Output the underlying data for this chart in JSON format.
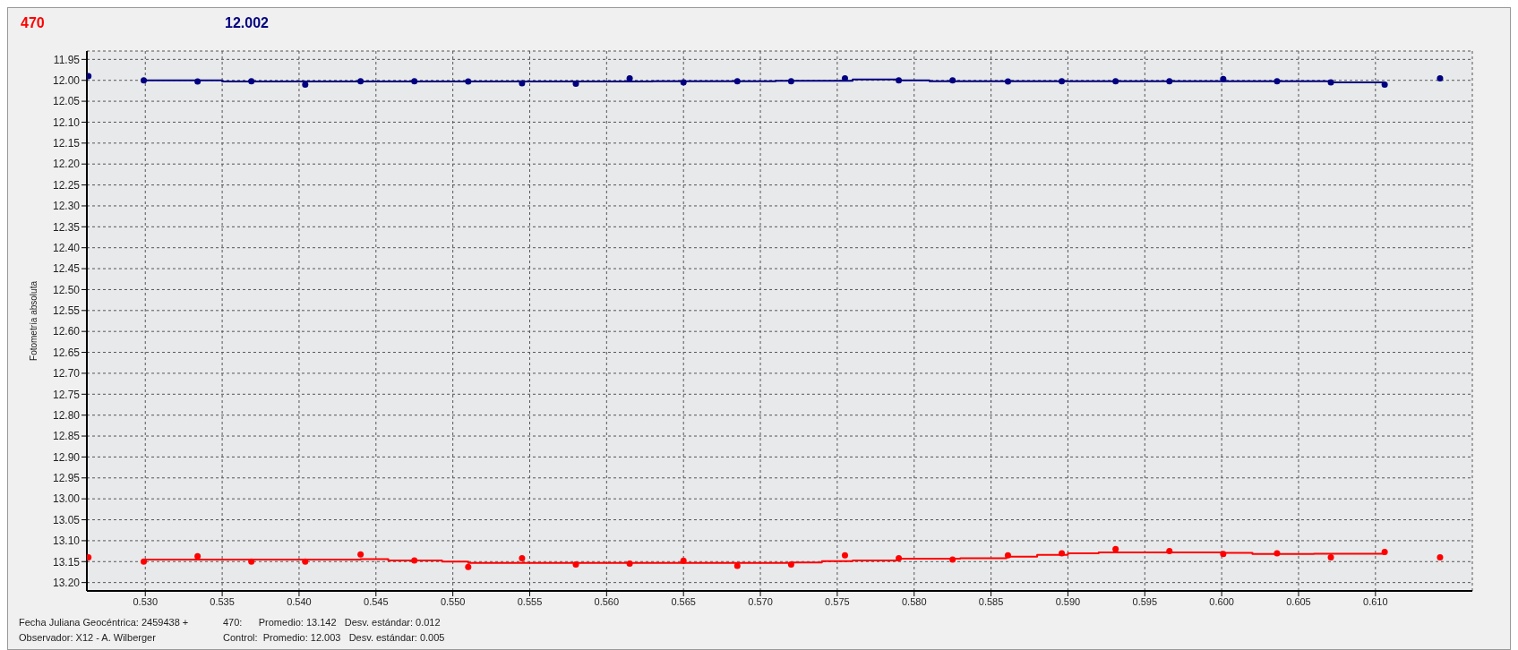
{
  "chart_data": {
    "type": "scatter",
    "ylabel": "Fotometría absoluta",
    "annotations": [
      "Fecha Juliana Geocéntrica: 2459438 +",
      "Observador: X12 - A. Wilberger",
      "470:      Promedio: 13.142   Desv. estándar: 0.012",
      "Control:  Promedio: 12.003   Desv. estándar: 0.005"
    ],
    "x": [
      0.5263,
      0.5299,
      0.5334,
      0.5369,
      0.5404,
      0.544,
      0.5475,
      0.551,
      0.5545,
      0.558,
      0.5615,
      0.565,
      0.5685,
      0.572,
      0.5755,
      0.579,
      0.5825,
      0.5861,
      0.5896,
      0.5931,
      0.5966,
      0.6001,
      0.6036,
      0.6071,
      0.6106,
      0.6142
    ],
    "series": [
      {
        "name": "470",
        "color": "#ff0000",
        "values": [
          13.14,
          13.15,
          13.137,
          13.15,
          13.15,
          13.133,
          13.147,
          13.163,
          13.142,
          13.157,
          13.155,
          13.148,
          13.16,
          13.157,
          13.135,
          13.142,
          13.145,
          13.135,
          13.13,
          13.12,
          13.125,
          13.132,
          13.13,
          13.14,
          13.127,
          13.14
        ]
      },
      {
        "name": "12.002",
        "color": "#000080",
        "values": [
          11.99,
          12.0,
          12.003,
          12.002,
          12.01,
          12.002,
          12.002,
          12.003,
          12.007,
          12.008,
          11.995,
          12.005,
          12.002,
          12.002,
          11.995,
          12.0,
          12.0,
          12.003,
          12.002,
          12.002,
          12.002,
          11.997,
          12.002,
          12.005,
          12.01,
          11.995
        ]
      },
      {
        "type": "step",
        "color": "#ff0000",
        "marker": "none",
        "x": [
          0.5299,
          0.544,
          0.5458,
          0.5493,
          0.551,
          0.572,
          0.574,
          0.576,
          0.579,
          0.583,
          0.586,
          0.588,
          0.59,
          0.592,
          0.6,
          0.602,
          0.606,
          0.6106
        ],
        "values": [
          13.145,
          13.144,
          13.147,
          13.15,
          13.153,
          13.152,
          13.149,
          13.147,
          13.143,
          13.142,
          13.138,
          13.134,
          13.13,
          13.128,
          13.129,
          13.132,
          13.131,
          13.133
        ]
      },
      {
        "type": "step",
        "color": "#000080",
        "marker": "none",
        "x": [
          0.5299,
          0.535,
          0.542,
          0.558,
          0.563,
          0.571,
          0.576,
          0.579,
          0.581,
          0.605,
          0.607,
          0.6106
        ],
        "values": [
          12.0,
          12.003,
          12.003,
          12.003,
          12.002,
          12.001,
          11.998,
          12.0,
          12.002,
          12.002,
          12.005,
          12.005
        ]
      }
    ],
    "marker": "circle",
    "line_style": "solid",
    "grid": true,
    "xlim": [
      0.5262,
      0.6163
    ],
    "ylim": [
      13.22,
      11.93
    ],
    "xticks": [
      {
        "value": 0.53,
        "label": "0.530"
      },
      {
        "value": 0.535,
        "label": "0.535"
      },
      {
        "value": 0.54,
        "label": "0.540"
      },
      {
        "value": 0.545,
        "label": "0.545"
      },
      {
        "value": 0.55,
        "label": "0.550"
      },
      {
        "value": 0.555,
        "label": "0.555"
      },
      {
        "value": 0.56,
        "label": "0.560"
      },
      {
        "value": 0.565,
        "label": "0.565"
      },
      {
        "value": 0.57,
        "label": "0.570"
      },
      {
        "value": 0.575,
        "label": "0.575"
      },
      {
        "value": 0.58,
        "label": "0.580"
      },
      {
        "value": 0.585,
        "label": "0.585"
      },
      {
        "value": 0.59,
        "label": "0.590"
      },
      {
        "value": 0.595,
        "label": "0.595"
      },
      {
        "value": 0.6,
        "label": "0.600"
      },
      {
        "value": 0.605,
        "label": "0.605"
      },
      {
        "value": 0.61,
        "label": "0.610"
      }
    ],
    "yticks": [
      11.95,
      {
        "value": 12,
        "label": "12.00"
      },
      12.05,
      {
        "value": 12.1,
        "label": "12.10"
      },
      12.15,
      {
        "value": 12.2,
        "label": "12.20"
      },
      12.25,
      {
        "value": 12.3,
        "label": "12.30"
      },
      12.35,
      {
        "value": 12.4,
        "label": "12.40"
      },
      12.45,
      {
        "value": 12.5,
        "label": "12.50"
      },
      12.55,
      {
        "value": 12.6,
        "label": "12.60"
      },
      12.65,
      {
        "value": 12.7,
        "label": "12.70"
      },
      12.75,
      {
        "value": 12.8,
        "label": "12.80"
      },
      12.85,
      {
        "value": 12.9,
        "label": "12.90"
      },
      12.95,
      {
        "value": 13,
        "label": "13.00"
      },
      13.05,
      {
        "value": 13.1,
        "label": "13.10"
      },
      13.15,
      {
        "value": 13.2,
        "label": "13.20"
      }
    ]
  }
}
